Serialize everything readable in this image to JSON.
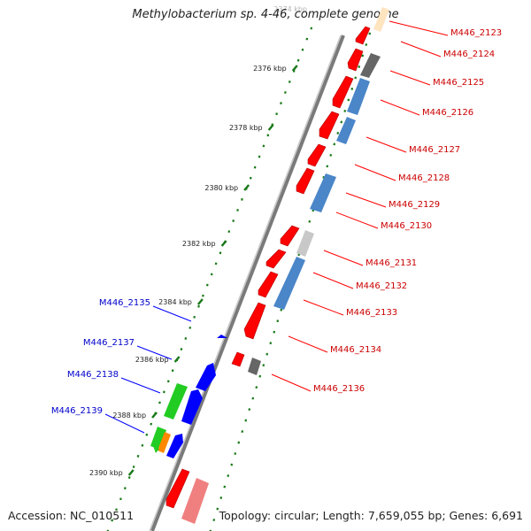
{
  "title": "Methylobacterium sp. 4-46, complete genome",
  "footer": {
    "accession": "Accession: NC_010511",
    "summary": "Topology: circular; Length: 7,659,055 bp; Genes: 6,691"
  },
  "ruler": {
    "top_faded_label": "2374 kbp",
    "tick_labels": [
      "2376 kbp",
      "2378 kbp",
      "2380 kbp",
      "2382 kbp",
      "2384 kbp",
      "2386 kbp",
      "2388 kbp",
      "2390 kbp"
    ]
  },
  "right_labels": [
    "M446_2123",
    "M446_2124",
    "M446_2125",
    "M446_2126",
    "M446_2127",
    "M446_2128",
    "M446_2129",
    "M446_2130",
    "M446_2131",
    "M446_2132",
    "M446_2133",
    "M446_2134",
    "M446_2136"
  ],
  "left_labels": [
    "M446_2135",
    "M446_2137",
    "M446_2138",
    "M446_2139"
  ],
  "colors": {
    "backbone": "#7a7a7a",
    "red": "#ff0000",
    "blue": "#0000ff",
    "steel_blue": "#4a86c8",
    "gray": "#666666",
    "light_gray": "#c8c8c8",
    "green": "#22cc22",
    "orange": "#ff8800",
    "pink": "#f08080",
    "peach": "#ffe4c0",
    "right_label": "#cc0000",
    "left_label": "#0000cc",
    "tick": "#1a7a1a"
  }
}
